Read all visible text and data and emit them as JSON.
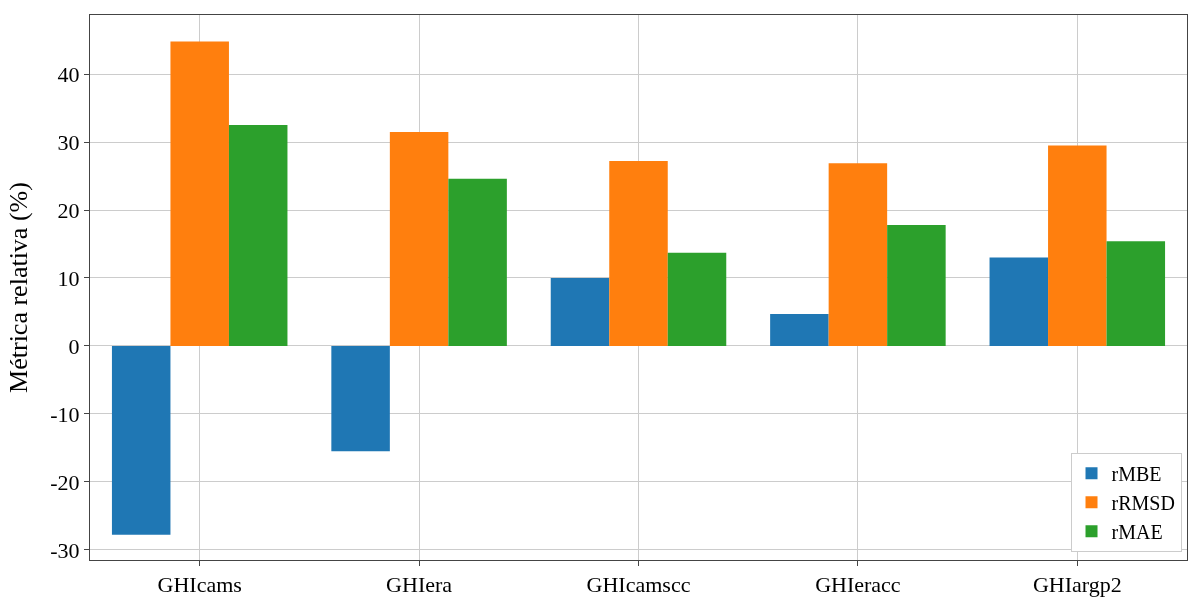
{
  "chart_data": {
    "type": "bar",
    "ylabel": "Métrica relativa (%)",
    "categories": [
      "GHIcams",
      "GHIera",
      "GHIcamscc",
      "GHIeracc",
      "GHIargp2"
    ],
    "series": [
      {
        "name": "rMBE",
        "color": "#1f77b4",
        "values": [
          -27.8,
          -15.5,
          10.0,
          4.7,
          13.0
        ]
      },
      {
        "name": "rRMSD",
        "color": "#ff7f0e",
        "values": [
          44.8,
          31.5,
          27.2,
          26.9,
          29.5
        ]
      },
      {
        "name": "rMAE",
        "color": "#2ca02c",
        "values": [
          32.5,
          24.6,
          13.7,
          17.8,
          15.4
        ]
      }
    ],
    "ylim": [
      -31.5,
      48.7
    ],
    "yticks": [
      -30,
      -20,
      -10,
      0,
      10,
      20,
      30,
      40
    ],
    "grid": true,
    "legend": "bottom right"
  }
}
